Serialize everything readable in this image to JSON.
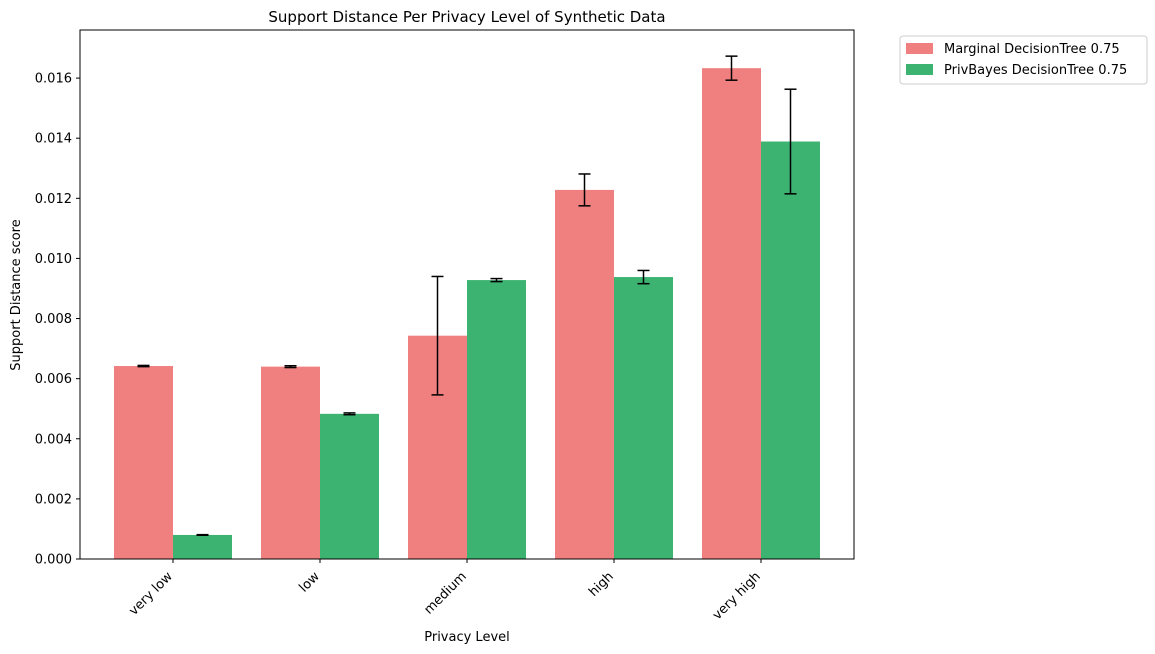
{
  "chart_data": {
    "type": "bar",
    "title": "Support Distance Per Privacy Level of Synthetic Data",
    "xlabel": "Privacy Level",
    "ylabel": "Support Distance score",
    "categories": [
      "very low",
      "low",
      "medium",
      "high",
      "very high"
    ],
    "ylim": [
      0,
      0.0176
    ],
    "yticks": [
      0.0,
      0.002,
      0.004,
      0.006,
      0.008,
      0.01,
      0.012,
      0.014,
      0.016
    ],
    "ytick_labels": [
      "0.000",
      "0.002",
      "0.004",
      "0.006",
      "0.008",
      "0.010",
      "0.012",
      "0.014",
      "0.016"
    ],
    "grid": false,
    "legend_position": "outside-top-right",
    "series": [
      {
        "name": "Marginal DecisionTree 0.75",
        "color": "#F08080",
        "values": [
          0.00642,
          0.0064,
          0.00743,
          0.01228,
          0.01633
        ],
        "errors": [
          2e-05,
          3e-05,
          0.00197,
          0.00053,
          0.0004
        ]
      },
      {
        "name": "PrivBayes DecisionTree 0.75",
        "color": "#3CB371",
        "values": [
          0.0008,
          0.00483,
          0.00928,
          0.00938,
          0.01389
        ],
        "errors": [
          1e-05,
          3e-05,
          5e-05,
          0.00022,
          0.00174
        ]
      }
    ]
  }
}
